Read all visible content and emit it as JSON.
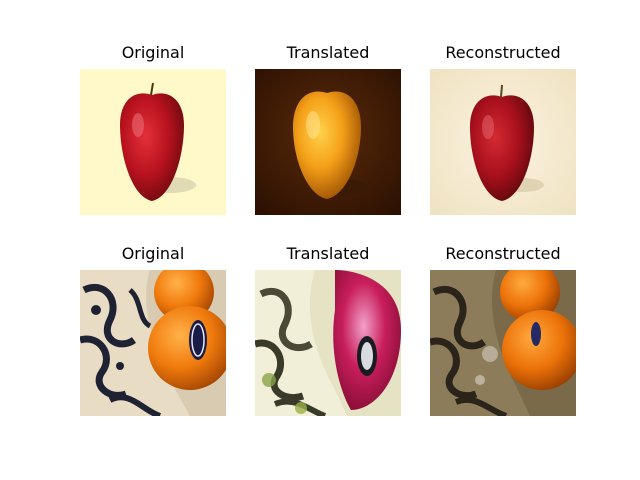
{
  "rows": [
    {
      "panels": [
        {
          "title": "Original",
          "depicts": "red-apple-on-cream-background"
        },
        {
          "title": "Translated",
          "depicts": "orange-on-dark-brown-background"
        },
        {
          "title": "Reconstructed",
          "depicts": "red-apple-on-pale-background"
        }
      ]
    },
    {
      "panels": [
        {
          "title": "Original",
          "depicts": "oranges-in-patterned-bowl"
        },
        {
          "title": "Translated",
          "depicts": "apple-in-patterned-bowl"
        },
        {
          "title": "Reconstructed",
          "depicts": "oranges-in-patterned-bowl-reconstructed"
        }
      ]
    }
  ]
}
